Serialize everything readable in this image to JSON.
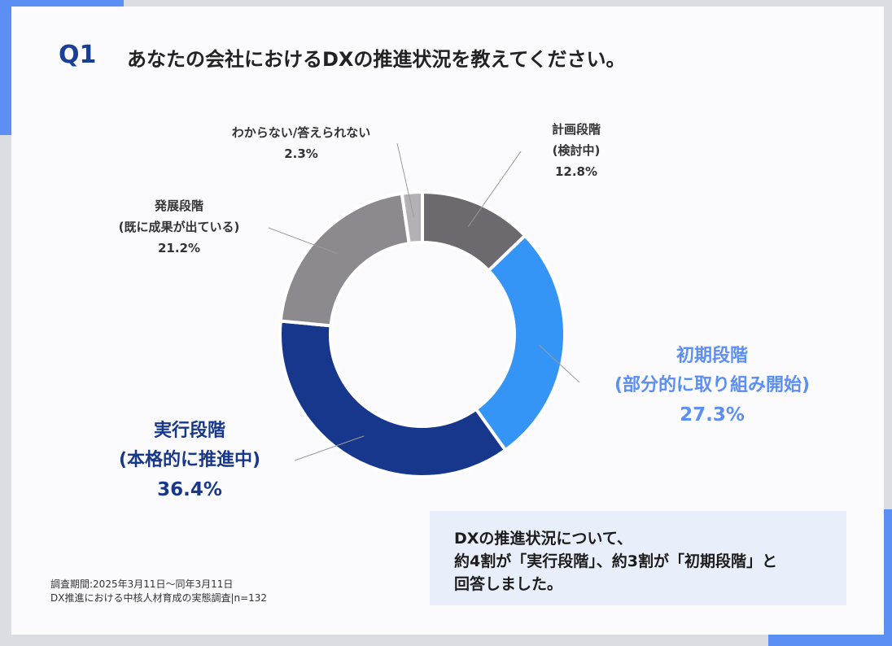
{
  "header": {
    "q_number": "Q1",
    "question": "あなたの会社におけるDXの推進状況を教えてください。"
  },
  "chart_data": {
    "type": "pie",
    "donut": true,
    "slices": [
      {
        "label_line1": "計画段階",
        "label_line2": "(検討中)",
        "value": 12.8,
        "pct": "12.8%",
        "color": "#6d6a6f"
      },
      {
        "label_line1": "初期段階",
        "label_line2": "(部分的に取り組み開始)",
        "value": 27.3,
        "pct": "27.3%",
        "color": "#3495f6"
      },
      {
        "label_line1": "実行段階",
        "label_line2": "(本格的に推進中)",
        "value": 36.4,
        "pct": "36.4%",
        "color": "#16378c"
      },
      {
        "label_line1": "発展段階",
        "label_line2": "(既に成果が出ている)",
        "value": 21.2,
        "pct": "21.2%",
        "color": "#8c898f"
      },
      {
        "label_line1": "わからない/答えられない",
        "label_line2": "",
        "value": 2.3,
        "pct": "2.3%",
        "color": "#b3b1b6"
      }
    ]
  },
  "summary": {
    "line1": "DXの推進状況について、",
    "line2": "約4割が「実行段階」、約3割が「初期段階」と",
    "line3": "回答しました。"
  },
  "note": {
    "line1": "調査期間:2025年3月11日〜同年3月11日",
    "line2": "DX推進における中核人材育成の実態調査|n=132"
  }
}
